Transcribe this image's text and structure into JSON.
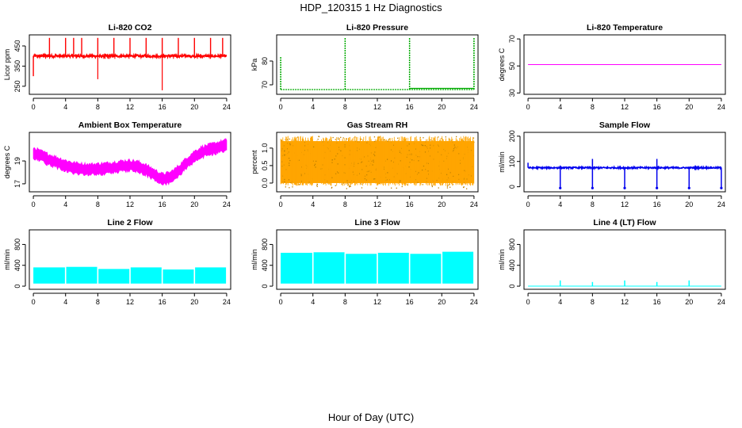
{
  "title": "HDP_120315  1 Hz Diagnostics",
  "xlabel": "Hour of Day (UTC)",
  "colors": {
    "co2": "#ff0000",
    "pressure": "#00aa00",
    "temperature": "#ff00ff",
    "box": "#ff00ff",
    "rh": "#ffa500",
    "rh_points": "#c08000",
    "sample": "#0000ee",
    "line": "#00ffff"
  },
  "chart_data": [
    {
      "type": "line",
      "title": "Li-820 CO2",
      "ylabel": "Licor ppm",
      "xticks": [
        0,
        4,
        8,
        12,
        16,
        20,
        24
      ],
      "yticks": [
        250,
        350,
        450
      ],
      "ylim": [
        210,
        505
      ],
      "xlim": [
        -0.5,
        24.5
      ],
      "color": "#ff0000",
      "series": [
        {
          "name": "CO2",
          "baseline": 400,
          "spikes_hi": [
            2,
            4,
            5,
            6,
            8,
            10,
            12,
            14,
            16,
            18,
            20,
            22,
            23.5
          ],
          "spike_hi_value": 490,
          "spikes_lo": [
            8,
            16
          ],
          "spike_lo_values": [
            285,
            230
          ],
          "start_dip": 300
        }
      ]
    },
    {
      "type": "line",
      "title": "Li-820 Pressure",
      "ylabel": "kPa",
      "xticks": [
        0,
        4,
        8,
        12,
        16,
        20,
        24
      ],
      "yticks": [
        70,
        80
      ],
      "ylim": [
        66,
        91
      ],
      "xlim": [
        -0.5,
        24.5
      ],
      "color": "#00aa00",
      "series": [
        {
          "name": "Pressure",
          "baseline": 68,
          "spikes": [
            8,
            16,
            24
          ],
          "spike_value": 90,
          "start_value": 82,
          "late_value": 68.5
        }
      ]
    },
    {
      "type": "line",
      "title": "Li-820 Temperature",
      "ylabel": "degrees C",
      "xticks": [
        0,
        4,
        8,
        12,
        16,
        20,
        24
      ],
      "yticks": [
        30,
        50,
        70
      ],
      "ylim": [
        29,
        73
      ],
      "xlim": [
        -0.5,
        24.5
      ],
      "color": "#ff00ff",
      "series": [
        {
          "name": "Temperature",
          "x": [
            0,
            24
          ],
          "values": [
            51,
            51
          ]
        }
      ]
    },
    {
      "type": "area",
      "title": "Ambient Box Temperature",
      "ylabel": "degrees C",
      "xticks": [
        0,
        4,
        8,
        12,
        16,
        20,
        24
      ],
      "yticks": [
        17,
        19
      ],
      "ylim": [
        16.3,
        21.5
      ],
      "xlim": [
        -0.5,
        24.5
      ],
      "color": "#ff00ff",
      "series": [
        {
          "name": "Box Temp",
          "x": [
            0,
            1,
            2,
            3,
            4,
            5,
            6,
            7,
            8,
            9,
            10,
            11,
            12,
            13,
            14,
            15,
            16,
            17,
            18,
            19,
            20,
            21,
            22,
            23,
            24
          ],
          "mid": [
            19.7,
            19.4,
            19.1,
            18.85,
            18.6,
            18.4,
            18.3,
            18.25,
            18.3,
            18.35,
            18.45,
            18.55,
            18.6,
            18.5,
            18.2,
            17.8,
            17.4,
            17.55,
            18.1,
            18.8,
            19.4,
            19.8,
            20.0,
            20.2,
            20.4
          ],
          "half_range": 0.45
        }
      ]
    },
    {
      "type": "scatter",
      "title": "Gas Stream RH",
      "ylabel": "percent",
      "xticks": [
        0,
        4,
        8,
        12,
        16,
        20,
        24
      ],
      "yticks": [
        0.0,
        0.5,
        1.0
      ],
      "ylim": [
        -0.25,
        1.45
      ],
      "xlim": [
        -0.5,
        24.5
      ],
      "color": "#ffa500",
      "series": [
        {
          "name": "RH",
          "low": 0.0,
          "high": 1.2,
          "range": [
            -0.15,
            1.35
          ]
        }
      ]
    },
    {
      "type": "line",
      "title": "Sample Flow",
      "ylabel": "ml/min",
      "xticks": [
        0,
        4,
        8,
        12,
        16,
        20,
        24
      ],
      "yticks": [
        0,
        100,
        200
      ],
      "ylim": [
        -20,
        215
      ],
      "xlim": [
        -0.5,
        24.5
      ],
      "color": "#0000ee",
      "series": [
        {
          "name": "Sample Flow",
          "baseline": 75,
          "dips": [
            4,
            8,
            12,
            16,
            20,
            24
          ],
          "dip_value": -5,
          "spikes": [
            8,
            16
          ],
          "spike_value": 110,
          "start_value": 95
        }
      ]
    },
    {
      "type": "area",
      "title": "Line 2 Flow",
      "ylabel": "ml/min",
      "xticks": [
        0,
        4,
        8,
        12,
        16,
        20,
        24
      ],
      "yticks": [
        0,
        400,
        800
      ],
      "ylim": [
        -60,
        1080
      ],
      "xlim": [
        -0.5,
        24.5
      ],
      "color": "#00ffff",
      "series": [
        {
          "name": "Line 2",
          "low": 50,
          "segments": [
            [
              0,
              4,
              360
            ],
            [
              4,
              8,
              370
            ],
            [
              8,
              12,
              330
            ],
            [
              12,
              16,
              360
            ],
            [
              16,
              20,
              320
            ],
            [
              20,
              24,
              360
            ]
          ]
        }
      ]
    },
    {
      "type": "area",
      "title": "Line 3 Flow",
      "ylabel": "ml/min",
      "xticks": [
        0,
        4,
        8,
        12,
        16,
        20,
        24
      ],
      "yticks": [
        0,
        400,
        800
      ],
      "ylim": [
        -60,
        1080
      ],
      "xlim": [
        -0.5,
        24.5
      ],
      "color": "#00ffff",
      "series": [
        {
          "name": "Line 3",
          "low": 50,
          "segments": [
            [
              0,
              4,
              640
            ],
            [
              4,
              8,
              650
            ],
            [
              8,
              12,
              620
            ],
            [
              12,
              16,
              640
            ],
            [
              16,
              20,
              620
            ],
            [
              20,
              24,
              660
            ]
          ]
        }
      ]
    },
    {
      "type": "line",
      "title": "Line 4 (LT) Flow",
      "ylabel": "ml/min",
      "xticks": [
        0,
        4,
        8,
        12,
        16,
        20,
        24
      ],
      "yticks": [
        0,
        400,
        800
      ],
      "ylim": [
        -60,
        1080
      ],
      "xlim": [
        -0.5,
        24.5
      ],
      "color": "#00ffff",
      "series": [
        {
          "name": "Line 4",
          "baseline": 0,
          "spikes": [
            4,
            8,
            12,
            16,
            20
          ],
          "spike_values": [
            110,
            80,
            110,
            80,
            110
          ]
        }
      ]
    }
  ]
}
